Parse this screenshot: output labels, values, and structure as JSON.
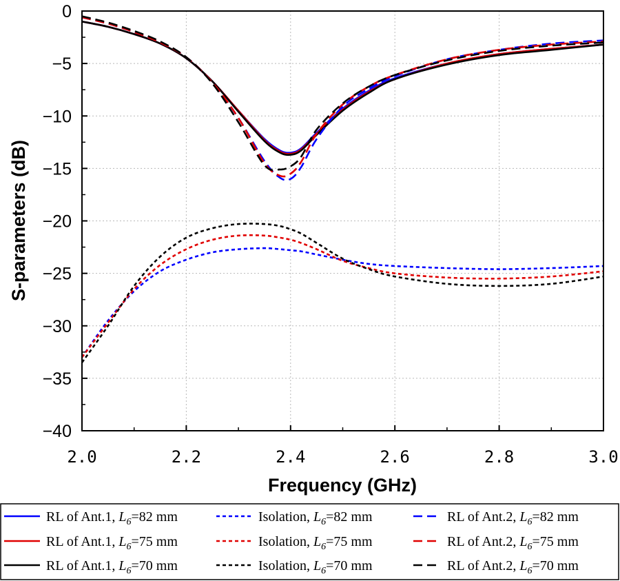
{
  "chart_data": {
    "type": "line",
    "xlabel": "Frequency (GHz)",
    "ylabel": "S-parameters (dB)",
    "xlim": [
      2.0,
      3.0
    ],
    "ylim": [
      -40,
      0
    ],
    "x_ticks": [
      "2.0",
      "2.2",
      "2.4",
      "2.6",
      "2.8",
      "3.0"
    ],
    "y_ticks": [
      "0",
      "−5",
      "−10",
      "−15",
      "−20",
      "−25",
      "−30",
      "−35",
      "−40"
    ],
    "grid": true,
    "legend_position": "bottom",
    "x": [
      2.0,
      2.05,
      2.1,
      2.15,
      2.2,
      2.25,
      2.3,
      2.35,
      2.38,
      2.4,
      2.42,
      2.45,
      2.5,
      2.55,
      2.6,
      2.7,
      2.8,
      2.9,
      3.0
    ],
    "series": [
      {
        "name": "RL of Ant.1, L6=82 mm",
        "legend_prefix": "RL of Ant.1, ",
        "legend_var": "L",
        "legend_sub": "6",
        "legend_suffix": "=82 mm",
        "color": "#0000ff",
        "dash": "solid",
        "values": [
          -1.0,
          -1.5,
          -2.2,
          -3.1,
          -4.5,
          -6.7,
          -9.5,
          -12.2,
          -13.3,
          -13.5,
          -13.1,
          -11.6,
          -9.3,
          -7.6,
          -6.4,
          -5.0,
          -4.1,
          -3.6,
          -3.2
        ]
      },
      {
        "name": "RL of Ant.1, L6=75 mm",
        "legend_prefix": "RL of Ant.1, ",
        "legend_var": "L",
        "legend_sub": "6",
        "legend_suffix": "=75 mm",
        "color": "#e00000",
        "dash": "solid",
        "values": [
          -1.0,
          -1.5,
          -2.2,
          -3.1,
          -4.5,
          -6.7,
          -9.5,
          -12.3,
          -13.4,
          -13.6,
          -13.2,
          -11.7,
          -9.4,
          -7.7,
          -6.5,
          -5.0,
          -4.1,
          -3.6,
          -3.2
        ]
      },
      {
        "name": "RL of Ant.1, L6=70 mm",
        "legend_prefix": "RL of Ant.1, ",
        "legend_var": "L",
        "legend_sub": "6",
        "legend_suffix": "=70 mm",
        "color": "#000000",
        "dash": "solid",
        "values": [
          -1.0,
          -1.5,
          -2.2,
          -3.1,
          -4.5,
          -6.7,
          -9.6,
          -12.4,
          -13.5,
          -13.7,
          -13.3,
          -11.8,
          -9.5,
          -7.8,
          -6.5,
          -5.1,
          -4.2,
          -3.7,
          -3.2
        ]
      },
      {
        "name": "Isolation, L6=82 mm",
        "legend_prefix": "Isolation, ",
        "legend_var": "L",
        "legend_sub": "6",
        "legend_suffix": "=82 mm",
        "color": "#0000ff",
        "dash": "short",
        "values": [
          -33.0,
          -29.5,
          -26.7,
          -24.8,
          -23.7,
          -23.0,
          -22.7,
          -22.6,
          -22.7,
          -22.8,
          -22.9,
          -23.2,
          -23.7,
          -24.1,
          -24.3,
          -24.5,
          -24.6,
          -24.5,
          -24.3
        ]
      },
      {
        "name": "Isolation, L6=75 mm",
        "legend_prefix": "Isolation, ",
        "legend_var": "L",
        "legend_sub": "6",
        "legend_suffix": "=75 mm",
        "color": "#e00000",
        "dash": "short",
        "values": [
          -33.0,
          -29.7,
          -26.5,
          -24.2,
          -22.7,
          -21.8,
          -21.4,
          -21.4,
          -21.6,
          -21.8,
          -22.1,
          -22.7,
          -23.8,
          -24.5,
          -25.0,
          -25.4,
          -25.5,
          -25.3,
          -24.8
        ]
      },
      {
        "name": "Isolation, L6=70 mm",
        "legend_prefix": "Isolation, ",
        "legend_var": "L",
        "legend_sub": "6",
        "legend_suffix": "=70 mm",
        "color": "#000000",
        "dash": "short",
        "values": [
          -33.5,
          -30.0,
          -26.2,
          -23.4,
          -21.6,
          -20.7,
          -20.3,
          -20.3,
          -20.5,
          -20.8,
          -21.2,
          -22.1,
          -23.6,
          -24.6,
          -25.3,
          -26.0,
          -26.2,
          -26.0,
          -25.3
        ]
      },
      {
        "name": "RL of Ant.2, L6=82 mm",
        "legend_prefix": "RL of Ant.2, ",
        "legend_var": "L",
        "legend_sub": "6",
        "legend_suffix": "=82 mm",
        "color": "#0000ff",
        "dash": "long",
        "values": [
          -0.6,
          -1.2,
          -2.0,
          -3.0,
          -4.4,
          -6.8,
          -10.2,
          -14.3,
          -15.9,
          -16.0,
          -14.9,
          -12.2,
          -9.1,
          -7.4,
          -6.2,
          -4.6,
          -3.7,
          -3.1,
          -2.8
        ]
      },
      {
        "name": "RL of Ant.2, L6=75 mm",
        "legend_prefix": "RL of Ant.2, ",
        "legend_var": "L",
        "legend_sub": "6",
        "legend_suffix": "=75 mm",
        "color": "#e00000",
        "dash": "long",
        "values": [
          -0.6,
          -1.2,
          -2.0,
          -3.0,
          -4.4,
          -6.8,
          -10.2,
          -14.5,
          -15.7,
          -15.5,
          -14.4,
          -11.7,
          -8.9,
          -7.2,
          -6.1,
          -4.6,
          -3.7,
          -3.2,
          -2.9
        ]
      },
      {
        "name": "RL of Ant.2, L6=70 mm",
        "legend_prefix": "RL of Ant.2, ",
        "legend_var": "L",
        "legend_sub": "6",
        "legend_suffix": "=70 mm",
        "color": "#000000",
        "dash": "long",
        "values": [
          -0.5,
          -1.1,
          -1.9,
          -2.9,
          -4.4,
          -6.9,
          -10.6,
          -14.7,
          -15.1,
          -14.8,
          -13.9,
          -11.3,
          -8.8,
          -7.2,
          -6.1,
          -4.7,
          -3.8,
          -3.3,
          -3.0
        ]
      }
    ],
    "legend_order": [
      0,
      3,
      6,
      1,
      4,
      7,
      2,
      5,
      8
    ]
  }
}
